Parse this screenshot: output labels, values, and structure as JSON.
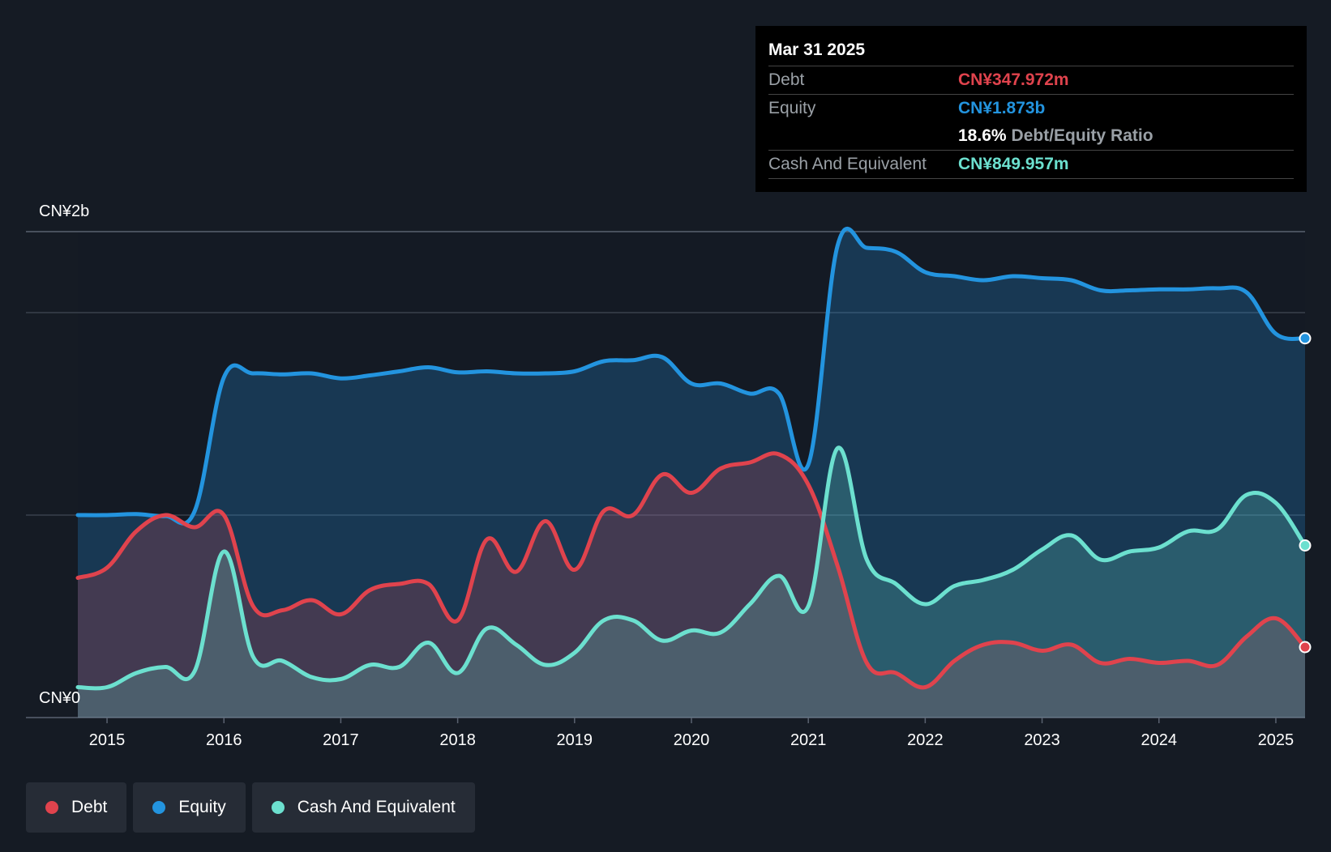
{
  "tooltip": {
    "date": "Mar 31 2025",
    "debt_label": "Debt",
    "debt_value": "CN¥347.972m",
    "equity_label": "Equity",
    "equity_value": "CN¥1.873b",
    "ratio_value": "18.6%",
    "ratio_label": "Debt/Equity Ratio",
    "cash_label": "Cash And Equivalent",
    "cash_value": "CN¥849.957m"
  },
  "legend": {
    "debt": "Debt",
    "equity": "Equity",
    "cash": "Cash And Equivalent"
  },
  "colors": {
    "debt": "#e0434d",
    "equity": "#2394df",
    "cash": "#6ce0cf",
    "background": "#151b24"
  },
  "chart_data": {
    "type": "area",
    "title": "",
    "xlabel": "",
    "ylabel": "",
    "y_tick_labels": [
      "CN¥0",
      "CN¥2b"
    ],
    "ylim": [
      0,
      2.4
    ],
    "y_units": "CN¥ billions",
    "x_tick_labels": [
      "2015",
      "2016",
      "2017",
      "2018",
      "2019",
      "2020",
      "2021",
      "2022",
      "2023",
      "2024",
      "2025"
    ],
    "xlim": [
      2014.75,
      2025.25
    ],
    "legend_position": "bottom-left",
    "grid": true,
    "series": [
      {
        "name": "Equity",
        "color": "#2394df",
        "points": [
          [
            2014.75,
            1.0
          ],
          [
            2015.0,
            1.0
          ],
          [
            2015.25,
            1.005
          ],
          [
            2015.5,
            0.995
          ],
          [
            2015.75,
            1.02
          ],
          [
            2016.0,
            1.68
          ],
          [
            2016.25,
            1.7
          ],
          [
            2016.5,
            1.695
          ],
          [
            2016.75,
            1.7
          ],
          [
            2017.0,
            1.675
          ],
          [
            2017.25,
            1.69
          ],
          [
            2017.5,
            1.71
          ],
          [
            2017.75,
            1.73
          ],
          [
            2018.0,
            1.705
          ],
          [
            2018.25,
            1.71
          ],
          [
            2018.5,
            1.7
          ],
          [
            2018.75,
            1.7
          ],
          [
            2019.0,
            1.71
          ],
          [
            2019.25,
            1.76
          ],
          [
            2019.5,
            1.765
          ],
          [
            2019.75,
            1.78
          ],
          [
            2020.0,
            1.65
          ],
          [
            2020.25,
            1.65
          ],
          [
            2020.5,
            1.6
          ],
          [
            2020.75,
            1.6
          ],
          [
            2021.0,
            1.25
          ],
          [
            2021.25,
            2.33
          ],
          [
            2021.5,
            2.32
          ],
          [
            2021.75,
            2.3
          ],
          [
            2022.0,
            2.2
          ],
          [
            2022.25,
            2.18
          ],
          [
            2022.5,
            2.16
          ],
          [
            2022.75,
            2.18
          ],
          [
            2023.0,
            2.17
          ],
          [
            2023.25,
            2.16
          ],
          [
            2023.5,
            2.11
          ],
          [
            2023.75,
            2.11
          ],
          [
            2024.0,
            2.115
          ],
          [
            2024.25,
            2.115
          ],
          [
            2024.5,
            2.12
          ],
          [
            2024.75,
            2.1
          ],
          [
            2025.0,
            1.895
          ],
          [
            2025.25,
            1.873
          ]
        ]
      },
      {
        "name": "Debt",
        "color": "#e0434d",
        "points": [
          [
            2014.75,
            0.69
          ],
          [
            2015.0,
            0.74
          ],
          [
            2015.25,
            0.92
          ],
          [
            2015.5,
            1.0
          ],
          [
            2015.75,
            0.94
          ],
          [
            2016.0,
            1.0
          ],
          [
            2016.25,
            0.55
          ],
          [
            2016.5,
            0.53
          ],
          [
            2016.75,
            0.58
          ],
          [
            2017.0,
            0.51
          ],
          [
            2017.25,
            0.63
          ],
          [
            2017.5,
            0.66
          ],
          [
            2017.75,
            0.66
          ],
          [
            2018.0,
            0.48
          ],
          [
            2018.25,
            0.88
          ],
          [
            2018.5,
            0.72
          ],
          [
            2018.75,
            0.97
          ],
          [
            2019.0,
            0.73
          ],
          [
            2019.25,
            1.02
          ],
          [
            2019.5,
            1.0
          ],
          [
            2019.75,
            1.2
          ],
          [
            2020.0,
            1.11
          ],
          [
            2020.25,
            1.23
          ],
          [
            2020.5,
            1.26
          ],
          [
            2020.75,
            1.3
          ],
          [
            2021.0,
            1.15
          ],
          [
            2021.25,
            0.75
          ],
          [
            2021.5,
            0.27
          ],
          [
            2021.75,
            0.22
          ],
          [
            2022.0,
            0.15
          ],
          [
            2022.25,
            0.28
          ],
          [
            2022.5,
            0.36
          ],
          [
            2022.75,
            0.37
          ],
          [
            2023.0,
            0.33
          ],
          [
            2023.25,
            0.36
          ],
          [
            2023.5,
            0.27
          ],
          [
            2023.75,
            0.29
          ],
          [
            2024.0,
            0.27
          ],
          [
            2024.25,
            0.28
          ],
          [
            2024.5,
            0.26
          ],
          [
            2024.75,
            0.4
          ],
          [
            2025.0,
            0.49
          ],
          [
            2025.25,
            0.348
          ]
        ]
      },
      {
        "name": "Cash And Equivalent",
        "color": "#6ce0cf",
        "points": [
          [
            2014.75,
            0.15
          ],
          [
            2015.0,
            0.15
          ],
          [
            2015.25,
            0.22
          ],
          [
            2015.5,
            0.25
          ],
          [
            2015.75,
            0.23
          ],
          [
            2016.0,
            0.82
          ],
          [
            2016.25,
            0.3
          ],
          [
            2016.5,
            0.28
          ],
          [
            2016.75,
            0.2
          ],
          [
            2017.0,
            0.19
          ],
          [
            2017.25,
            0.26
          ],
          [
            2017.5,
            0.25
          ],
          [
            2017.75,
            0.37
          ],
          [
            2018.0,
            0.22
          ],
          [
            2018.25,
            0.44
          ],
          [
            2018.5,
            0.36
          ],
          [
            2018.75,
            0.26
          ],
          [
            2019.0,
            0.32
          ],
          [
            2019.25,
            0.48
          ],
          [
            2019.5,
            0.48
          ],
          [
            2019.75,
            0.38
          ],
          [
            2020.0,
            0.43
          ],
          [
            2020.25,
            0.42
          ],
          [
            2020.5,
            0.56
          ],
          [
            2020.75,
            0.7
          ],
          [
            2021.0,
            0.55
          ],
          [
            2021.25,
            1.33
          ],
          [
            2021.5,
            0.78
          ],
          [
            2021.75,
            0.66
          ],
          [
            2022.0,
            0.56
          ],
          [
            2022.25,
            0.65
          ],
          [
            2022.5,
            0.68
          ],
          [
            2022.75,
            0.73
          ],
          [
            2023.0,
            0.83
          ],
          [
            2023.25,
            0.9
          ],
          [
            2023.5,
            0.78
          ],
          [
            2023.75,
            0.82
          ],
          [
            2024.0,
            0.84
          ],
          [
            2024.25,
            0.92
          ],
          [
            2024.5,
            0.93
          ],
          [
            2024.75,
            1.1
          ],
          [
            2025.0,
            1.06
          ],
          [
            2025.25,
            0.85
          ]
        ]
      }
    ]
  }
}
